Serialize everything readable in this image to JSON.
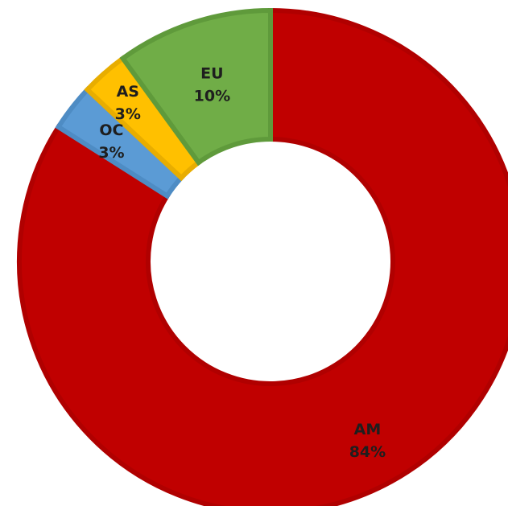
{
  "chart_data": {
    "type": "pie",
    "variant": "donut",
    "categories": [
      "AM",
      "OC",
      "AS",
      "EU"
    ],
    "values": [
      84,
      3,
      3,
      10
    ],
    "value_labels": [
      "84%",
      "3%",
      "3%",
      "10%"
    ],
    "colors": [
      "#c00000",
      "#5b9bd5",
      "#ffc000",
      "#70ad47"
    ],
    "border_colors": [
      "#b00000",
      "#4e8cc4",
      "#e8ad00",
      "#5f9a3b"
    ],
    "title": "",
    "legend": "none",
    "start_angle_deg": 0,
    "direction": "clockwise"
  }
}
